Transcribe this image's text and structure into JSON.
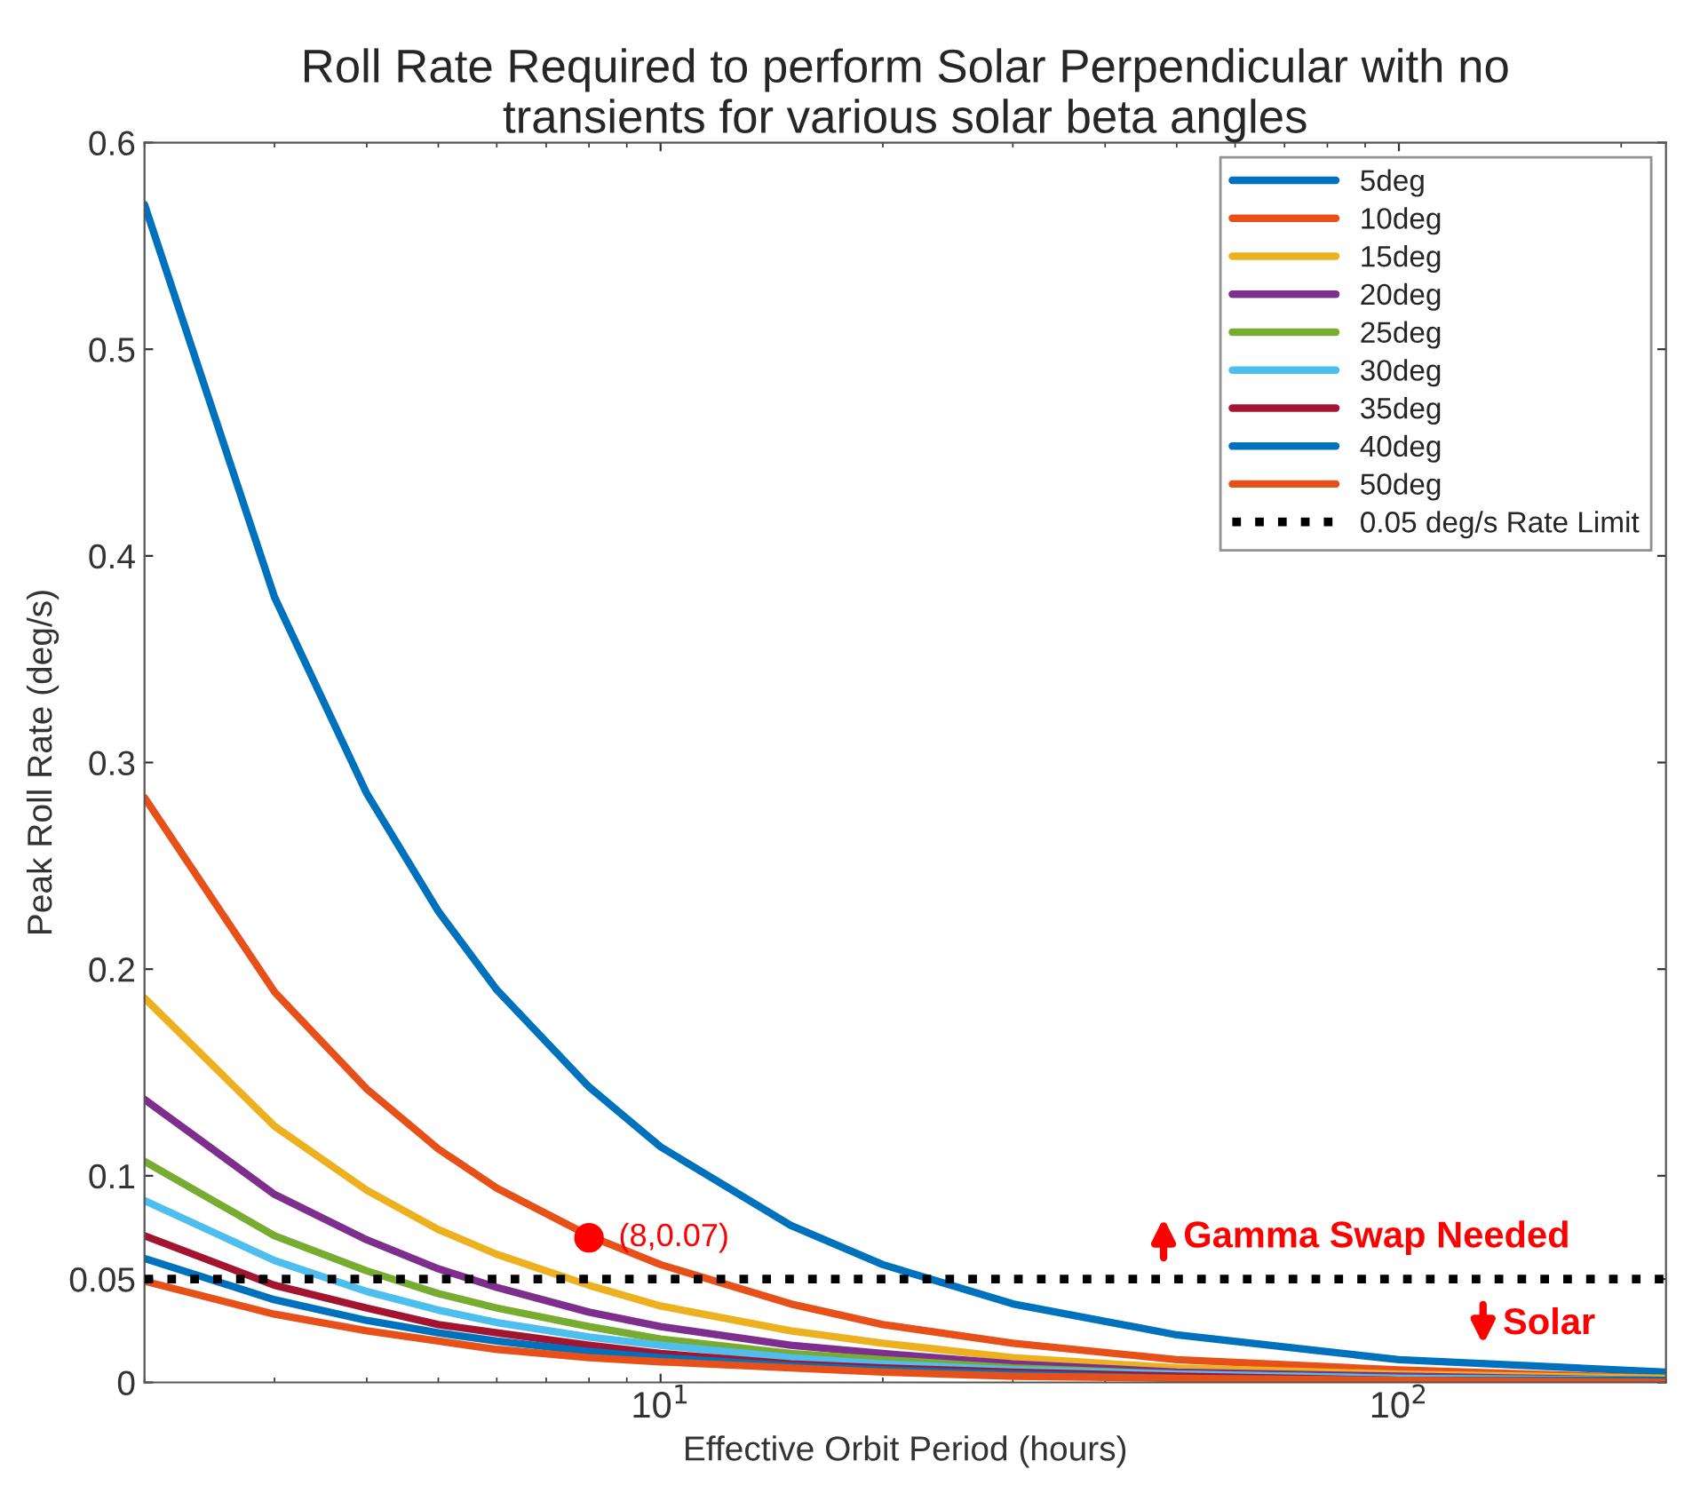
{
  "chart_data": {
    "type": "line",
    "title": "Roll Rate Required to perform Solar Perpendicular with no\ntransients for various solar beta angles",
    "xlabel": "Effective Orbit Period (hours)",
    "ylabel": "Peak Roll Rate (deg/s)",
    "x": [
      2,
      3,
      4,
      5,
      6,
      8,
      10,
      15,
      20,
      30,
      50,
      100,
      230
    ],
    "series": [
      {
        "name": "5deg",
        "color": "#0072bd",
        "values": [
          0.57,
          0.38,
          0.285,
          0.228,
          0.19,
          0.143,
          0.114,
          0.076,
          0.057,
          0.038,
          0.023,
          0.011,
          0.005
        ]
      },
      {
        "name": "10deg",
        "color": "#e8501a",
        "values": [
          0.283,
          0.189,
          0.142,
          0.113,
          0.094,
          0.071,
          0.057,
          0.038,
          0.028,
          0.019,
          0.011,
          0.006,
          0.002
        ]
      },
      {
        "name": "15deg",
        "color": "#edb120",
        "values": [
          0.186,
          0.124,
          0.093,
          0.074,
          0.062,
          0.047,
          0.037,
          0.025,
          0.019,
          0.012,
          0.007,
          0.004,
          0.002
        ]
      },
      {
        "name": "20deg",
        "color": "#7e2f8e",
        "values": [
          0.137,
          0.091,
          0.069,
          0.055,
          0.046,
          0.034,
          0.027,
          0.018,
          0.014,
          0.009,
          0.005,
          0.003,
          0.001
        ]
      },
      {
        "name": "25deg",
        "color": "#77ac30",
        "values": [
          0.107,
          0.071,
          0.054,
          0.043,
          0.036,
          0.027,
          0.021,
          0.014,
          0.011,
          0.007,
          0.004,
          0.002,
          0.001
        ]
      },
      {
        "name": "30deg",
        "color": "#4dbeee",
        "values": [
          0.088,
          0.059,
          0.044,
          0.035,
          0.029,
          0.022,
          0.018,
          0.012,
          0.009,
          0.006,
          0.004,
          0.002,
          0.001
        ]
      },
      {
        "name": "35deg",
        "color": "#a2142f",
        "values": [
          0.071,
          0.047,
          0.036,
          0.028,
          0.024,
          0.018,
          0.014,
          0.009,
          0.007,
          0.005,
          0.003,
          0.001,
          0.001
        ]
      },
      {
        "name": "40deg",
        "color": "#0072bd",
        "values": [
          0.06,
          0.04,
          0.03,
          0.024,
          0.02,
          0.015,
          0.012,
          0.008,
          0.006,
          0.004,
          0.002,
          0.001,
          0.001
        ]
      },
      {
        "name": "50deg",
        "color": "#e8501a",
        "values": [
          0.049,
          0.033,
          0.025,
          0.02,
          0.016,
          0.012,
          0.01,
          0.007,
          0.005,
          0.003,
          0.002,
          0.001,
          0.0
        ]
      },
      {
        "type": "scatter",
        "color": "#ff0000",
        "x": [
          8
        ],
        "values": [
          0.07
        ],
        "marker": "circle"
      }
    ],
    "ref_lines": [
      {
        "axis": "y",
        "value": 0.05,
        "label": "0.05 deg/s Rate Limit",
        "color": "#000000",
        "line_style": "dotted"
      }
    ],
    "annotations": [
      {
        "text": "(8,0.07)",
        "x": 8,
        "y": 0.07
      },
      {
        "text": "Gamma Swap Needed",
        "x": 48,
        "y": 0.07
      },
      {
        "text": "Solar",
        "x": 130,
        "y": 0.028
      }
    ],
    "log": "x",
    "xlim": [
      2,
      230
    ],
    "xticks": [
      {
        "value": 10,
        "label": "10$^{1}$"
      },
      {
        "value": 100,
        "label": "10$^{2}$"
      }
    ],
    "ylim": [
      0,
      0.6
    ],
    "yticks": [
      0,
      {
        "value": 0.05,
        "label": "0.05"
      },
      0.1,
      0.2,
      0.3,
      0.4,
      0.5,
      0.6
    ],
    "legend": "top right",
    "grid": false
  }
}
